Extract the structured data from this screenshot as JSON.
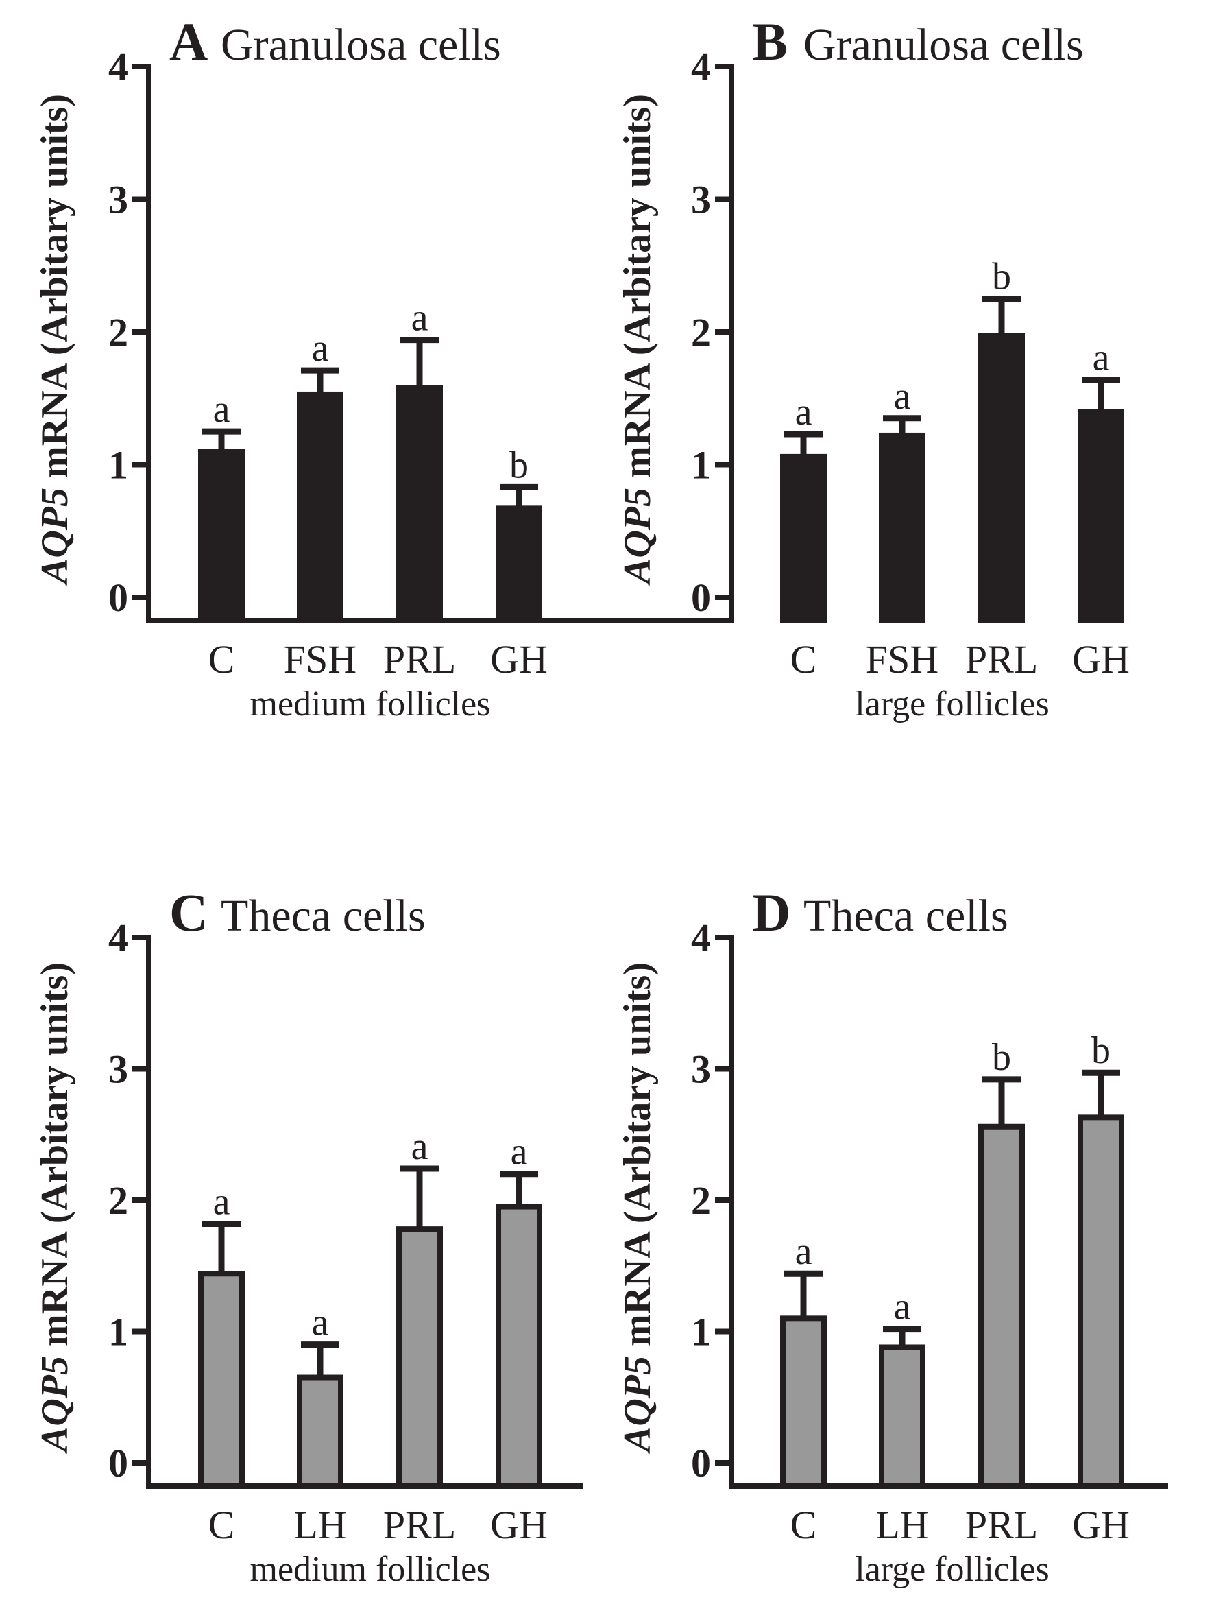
{
  "colors": {
    "dark_fill": "#231f20",
    "gray_fill": "#999999",
    "outline": "#231f20"
  },
  "ylabel_italic": "AQP5",
  "ylabel_rest": " mRNA (Arbitary units)",
  "chart_data": [
    {
      "type": "bar",
      "panel": "A",
      "title": "Granulosa cells",
      "categories": [
        "C",
        "FSH",
        "PRL",
        "GH"
      ],
      "values": [
        1.1,
        1.53,
        1.58,
        0.67
      ],
      "errors": [
        0.15,
        0.18,
        0.36,
        0.16
      ],
      "letters": [
        "a",
        "a",
        "a",
        "b"
      ],
      "xlabel": "medium follicles",
      "ylim": [
        0,
        4
      ],
      "yticks": [
        "0",
        "1",
        "2",
        "3",
        "4"
      ],
      "fill": "dark"
    },
    {
      "type": "bar",
      "panel": "B",
      "title": "Granulosa cells",
      "categories": [
        "C",
        "FSH",
        "PRL",
        "GH"
      ],
      "values": [
        1.06,
        1.22,
        1.97,
        1.4
      ],
      "errors": [
        0.17,
        0.13,
        0.28,
        0.24
      ],
      "letters": [
        "a",
        "a",
        "b",
        "a"
      ],
      "xlabel": "large follicles",
      "ylim": [
        0,
        4
      ],
      "yticks": [
        "0",
        "1",
        "2",
        "3",
        "4"
      ],
      "fill": "dark"
    },
    {
      "type": "bar",
      "panel": "C",
      "title": "Theca cells",
      "categories": [
        "C",
        "LH",
        "PRL",
        "GH"
      ],
      "values": [
        1.44,
        0.65,
        1.78,
        1.95
      ],
      "errors": [
        0.38,
        0.25,
        0.46,
        0.25
      ],
      "letters": [
        "a",
        "a",
        "a",
        "a"
      ],
      "xlabel": "medium follicles",
      "ylim": [
        0,
        4
      ],
      "yticks": [
        "0",
        "1",
        "2",
        "3",
        "4"
      ],
      "fill": "gray"
    },
    {
      "type": "bar",
      "panel": "D",
      "title": "Theca cells",
      "categories": [
        "C",
        "LH",
        "PRL",
        "GH"
      ],
      "values": [
        1.1,
        0.88,
        2.56,
        2.63
      ],
      "errors": [
        0.34,
        0.14,
        0.36,
        0.34
      ],
      "letters": [
        "a",
        "a",
        "b",
        "b"
      ],
      "xlabel": "large follicles",
      "ylim": [
        0,
        4
      ],
      "yticks": [
        "0",
        "1",
        "2",
        "3",
        "4"
      ],
      "fill": "gray"
    }
  ]
}
